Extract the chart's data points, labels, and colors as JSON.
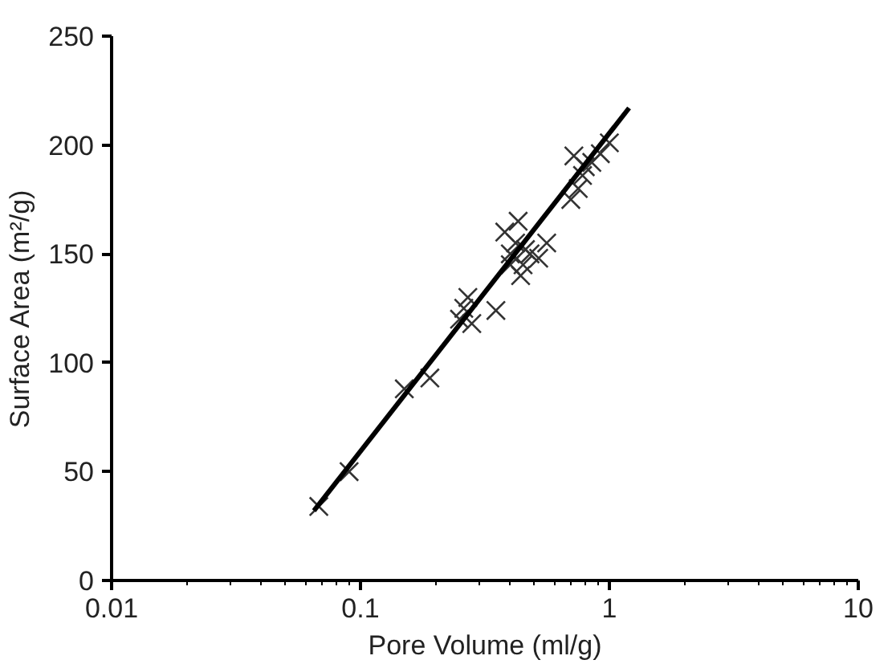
{
  "chart_data": {
    "type": "scatter",
    "xlabel": "Pore Volume (ml/g)",
    "ylabel": "Surface Area (m²/g)",
    "log": "x",
    "grid": false,
    "xlim": [
      0.01,
      10
    ],
    "xticks": [
      0.01,
      0.1,
      1,
      10
    ],
    "ylim": [
      0,
      250
    ],
    "yticks": [
      0,
      50,
      100,
      150,
      200,
      250
    ],
    "series": [
      {
        "marker": "cross",
        "color": "#333333",
        "x": [
          0.068,
          0.09,
          0.15,
          0.19,
          0.25,
          0.26,
          0.27,
          0.28,
          0.35,
          0.38,
          0.4,
          0.42,
          0.44,
          0.45,
          0.48,
          0.52,
          0.56,
          0.4,
          0.43,
          0.46,
          0.7,
          0.75,
          0.78,
          0.8,
          0.85,
          0.92,
          1.0,
          0.72
        ],
        "values": [
          34,
          50,
          88,
          93,
          120,
          125,
          130,
          118,
          124,
          160,
          150,
          155,
          140,
          145,
          150,
          148,
          155,
          145,
          165,
          152,
          175,
          180,
          186,
          190,
          192,
          196,
          201,
          195
        ]
      },
      {
        "type": "line",
        "marker": "none",
        "color": "#000000",
        "x": [
          0.065,
          1.2
        ],
        "values": [
          32,
          217
        ]
      }
    ]
  }
}
